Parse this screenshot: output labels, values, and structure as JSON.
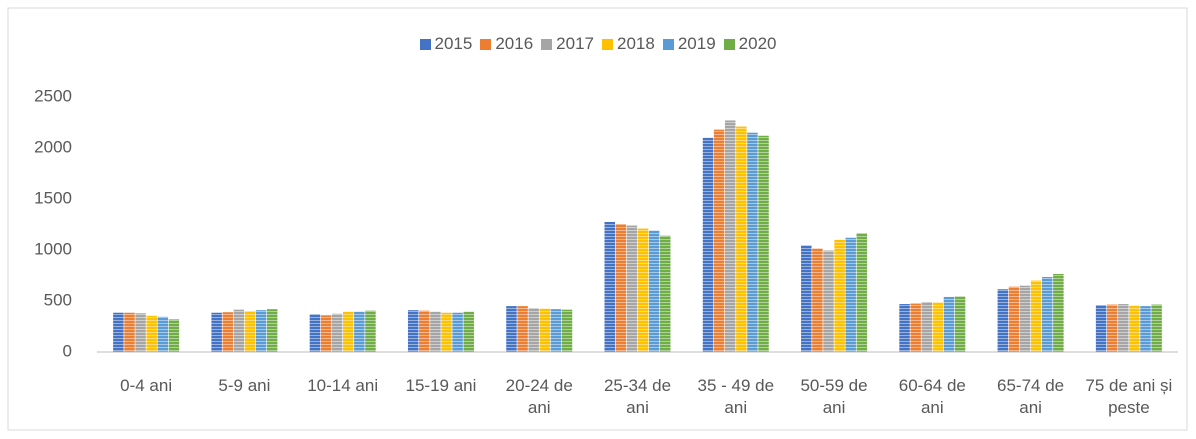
{
  "chart_data": {
    "type": "bar",
    "categories": [
      "0-4 ani",
      "5-9 ani",
      "10-14 ani",
      "15-19 ani",
      "20-24 de ani",
      "25-34 de ani",
      "35 - 49 de ani",
      "50-59 de ani",
      "60-64 de ani",
      "65-74 de ani",
      "75 de ani și peste"
    ],
    "series": [
      {
        "name": "2015",
        "color": "#4472c4",
        "values": [
          385,
          385,
          370,
          410,
          450,
          1275,
          2100,
          1045,
          470,
          615,
          460
        ]
      },
      {
        "name": "2016",
        "color": "#ed7d31",
        "values": [
          385,
          390,
          360,
          405,
          450,
          1255,
          2180,
          1015,
          475,
          640,
          465
        ]
      },
      {
        "name": "2017",
        "color": "#a5a5a5",
        "values": [
          380,
          415,
          375,
          395,
          430,
          1240,
          2270,
          995,
          490,
          650,
          470
        ]
      },
      {
        "name": "2018",
        "color": "#ffc000",
        "values": [
          355,
          400,
          395,
          385,
          425,
          1210,
          2210,
          1100,
          485,
          700,
          455
        ]
      },
      {
        "name": "2019",
        "color": "#5b9bd5",
        "values": [
          345,
          410,
          395,
          385,
          420,
          1190,
          2150,
          1120,
          540,
          735,
          450
        ]
      },
      {
        "name": "2020",
        "color": "#70ad47",
        "values": [
          320,
          420,
          405,
          395,
          415,
          1140,
          2120,
          1165,
          545,
          765,
          465
        ]
      }
    ],
    "ylim": [
      0,
      2500
    ],
    "yticks": [
      0,
      500,
      1000,
      1500,
      2000,
      2500
    ],
    "grid": false,
    "legend": "top"
  }
}
